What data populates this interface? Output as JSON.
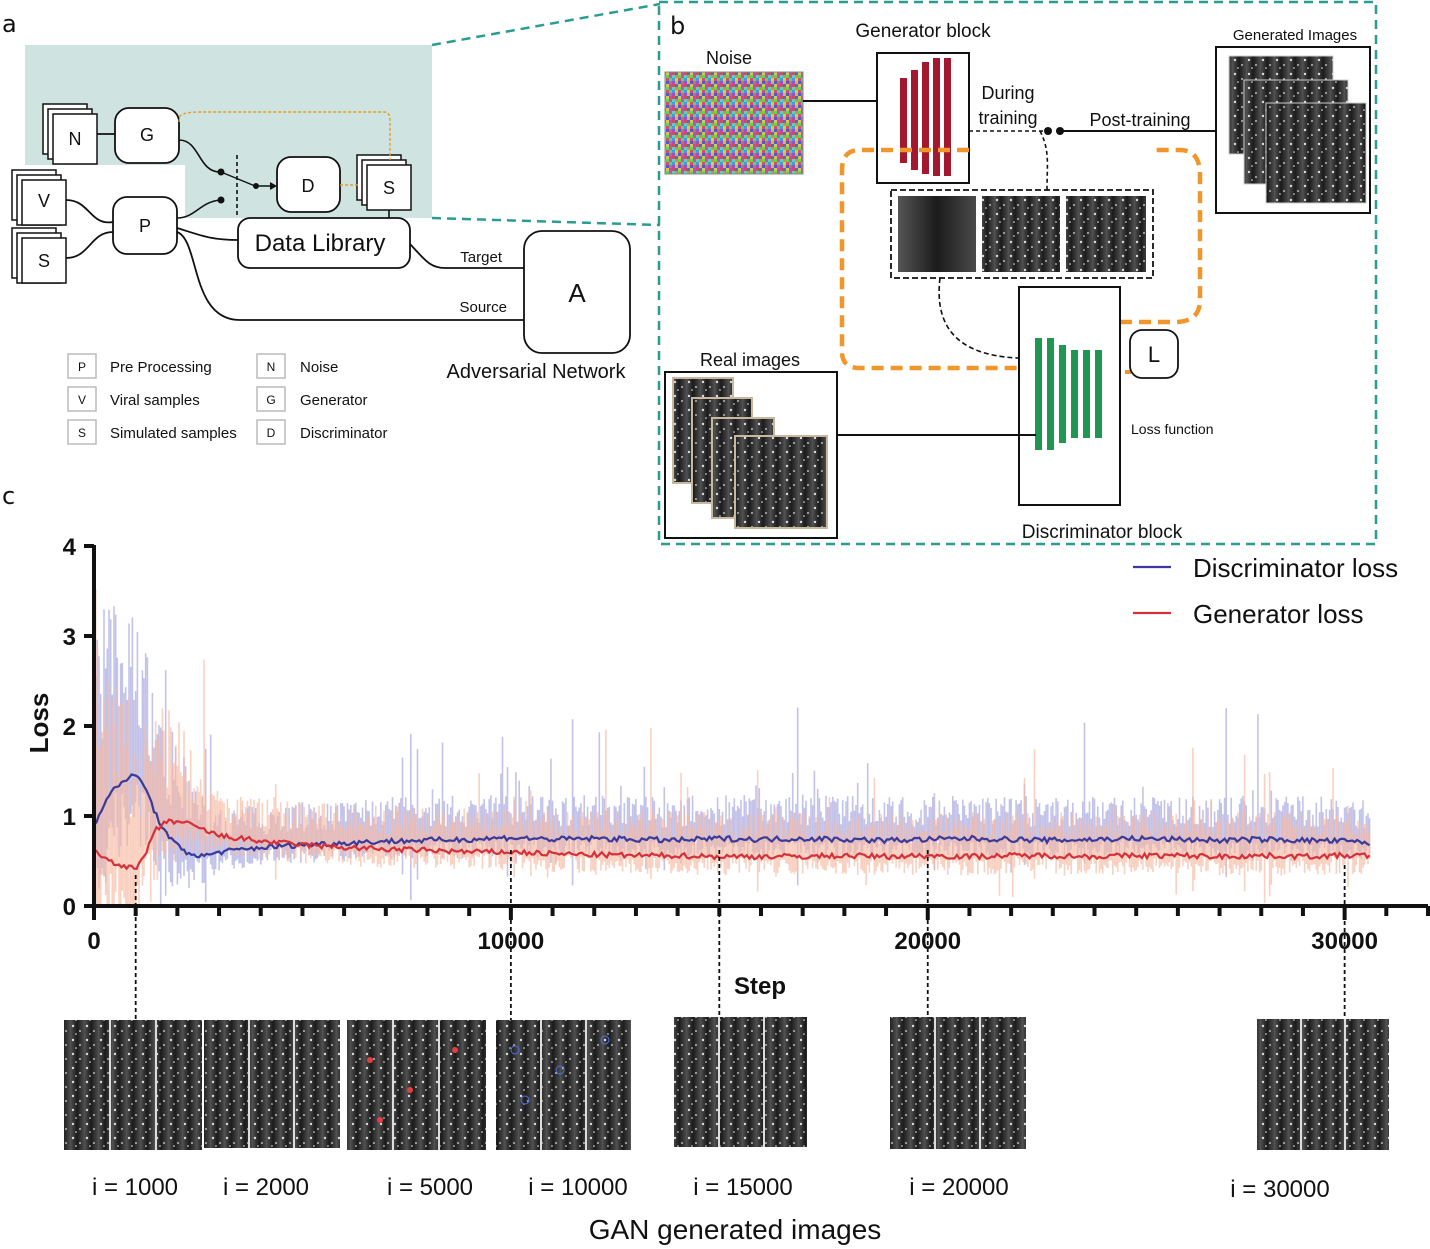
{
  "panels": {
    "a": "a",
    "b": "b",
    "c": "c"
  },
  "panel_a": {
    "nodes": {
      "N": "N",
      "G": "G",
      "V": "V",
      "S_in": "S",
      "P": "P",
      "D": "D",
      "S_out": "S",
      "A": "A"
    },
    "data_library": "Data Library",
    "target": "Target",
    "source": "Source",
    "adversarial_network": "Adversarial Network",
    "legend": [
      {
        "key": "P",
        "text": "Pre Processing"
      },
      {
        "key": "V",
        "text": "Viral samples"
      },
      {
        "key": "S",
        "text": "Simulated samples"
      },
      {
        "key": "N",
        "text": "Noise"
      },
      {
        "key": "G",
        "text": "Generator"
      },
      {
        "key": "D",
        "text": "Discriminator"
      }
    ],
    "colors": {
      "highlight": "#cfe4e0",
      "feedback": "#e79a2a"
    }
  },
  "panel_b": {
    "noise": "Noise",
    "generator_block": "Generator block",
    "during_training_1": "During",
    "during_training_2": "training",
    "post_training": "Post-training",
    "generated_images": "Generated Images",
    "real_images": "Real images",
    "loss_symbol": "L",
    "loss_function": "Loss function",
    "discriminator_block": "Discriminator block",
    "colors": {
      "border": "#2a9d90",
      "generator": "#a3182e",
      "discriminator": "#1f9652",
      "loop": "#f0962a"
    }
  },
  "chart_data": {
    "type": "line",
    "xlabel": "Step",
    "ylabel": "Loss",
    "xlim": [
      0,
      32000
    ],
    "ylim": [
      0,
      4
    ],
    "xticks": [
      0,
      10000,
      20000,
      30000
    ],
    "yticks": [
      0,
      1,
      2,
      3,
      4
    ],
    "legend_position": "top-right",
    "series": [
      {
        "name": "Discriminator loss",
        "color": "#3a3a9a",
        "x": [
          0,
          200,
          400,
          700,
          1000,
          1200,
          1500,
          1800,
          2200,
          2600,
          3000,
          4000,
          5000,
          6000,
          7000,
          8000,
          9000,
          10000,
          11000,
          12000,
          13000,
          14000,
          15000,
          16000,
          17000,
          18000,
          19000,
          20000,
          21000,
          22000,
          23000,
          24000,
          25000,
          26000,
          27000,
          28000,
          29000,
          30000,
          30600
        ],
        "values": [
          0.9,
          1.1,
          1.25,
          1.4,
          1.45,
          1.35,
          1.0,
          0.75,
          0.6,
          0.55,
          0.6,
          0.65,
          0.68,
          0.7,
          0.72,
          0.73,
          0.74,
          0.76,
          0.74,
          0.75,
          0.74,
          0.73,
          0.75,
          0.74,
          0.75,
          0.74,
          0.73,
          0.74,
          0.75,
          0.74,
          0.73,
          0.74,
          0.75,
          0.74,
          0.73,
          0.74,
          0.73,
          0.72,
          0.7
        ]
      },
      {
        "name": "Generator loss",
        "color": "#d6303a",
        "x": [
          0,
          200,
          400,
          700,
          1000,
          1200,
          1500,
          1800,
          2200,
          2600,
          3000,
          4000,
          5000,
          6000,
          7000,
          8000,
          9000,
          10000,
          11000,
          12000,
          13000,
          14000,
          15000,
          16000,
          17000,
          18000,
          19000,
          20000,
          21000,
          22000,
          23000,
          24000,
          25000,
          26000,
          27000,
          28000,
          29000,
          30000,
          30600
        ],
        "values": [
          0.6,
          0.55,
          0.5,
          0.45,
          0.4,
          0.55,
          0.85,
          0.95,
          0.92,
          0.85,
          0.78,
          0.72,
          0.68,
          0.65,
          0.63,
          0.62,
          0.6,
          0.6,
          0.58,
          0.57,
          0.56,
          0.56,
          0.55,
          0.55,
          0.55,
          0.56,
          0.55,
          0.56,
          0.55,
          0.56,
          0.56,
          0.55,
          0.56,
          0.56,
          0.55,
          0.56,
          0.55,
          0.56,
          0.56
        ]
      }
    ]
  },
  "samples": {
    "caption": "GAN generated images",
    "items": [
      {
        "label": "i = 1000",
        "step": 1000
      },
      {
        "label": "i = 2000",
        "step": 2000
      },
      {
        "label": "i = 5000",
        "step": 5000
      },
      {
        "label": "i = 10000",
        "step": 10000
      },
      {
        "label": "i = 15000",
        "step": 15000
      },
      {
        "label": "i = 20000",
        "step": 20000
      },
      {
        "label": "i = 30000",
        "step": 30000
      }
    ]
  }
}
